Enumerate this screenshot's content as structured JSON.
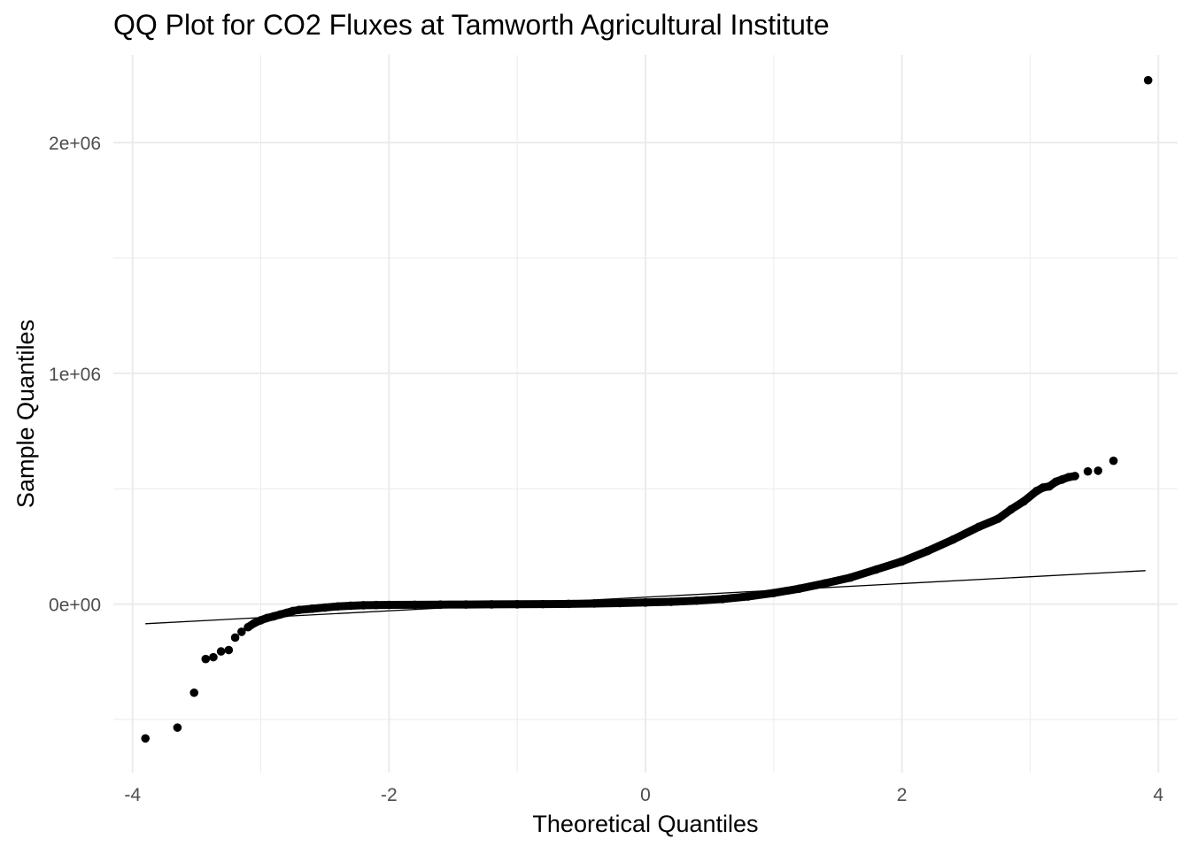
{
  "chart_data": {
    "type": "scatter",
    "title": "QQ Plot for CO2 Fluxes at Tamworth Agricultural Institute",
    "xlabel": "Theoretical Quantiles",
    "ylabel": "Sample Quantiles",
    "xlim": [
      -4.15,
      4.15
    ],
    "ylim": [
      -730000,
      2380000
    ],
    "x_ticks": [
      {
        "value": -4,
        "label": "-4"
      },
      {
        "value": -2,
        "label": "-2"
      },
      {
        "value": 0,
        "label": "0"
      },
      {
        "value": 2,
        "label": "2"
      },
      {
        "value": 4,
        "label": "4"
      }
    ],
    "y_ticks": [
      {
        "value": 0,
        "label": "0e+00"
      },
      {
        "value": 1000000,
        "label": "1e+06"
      },
      {
        "value": 2000000,
        "label": "2e+06"
      }
    ],
    "x_minor_breaks": [
      -3,
      -1,
      1,
      3
    ],
    "y_minor_breaks": [
      -500000,
      500000,
      1500000
    ],
    "grid": true,
    "point_color": "#000000",
    "line_color": "#000000",
    "grid_color": "#ebebeb",
    "reference_line": {
      "x": [
        -3.9,
        3.9
      ],
      "y": [
        -85000,
        145000
      ]
    },
    "series": [
      {
        "values": [
          [
            -3.9,
            -582000
          ],
          [
            -3.65,
            -535000
          ],
          [
            -3.52,
            -384000
          ],
          [
            -3.43,
            -238000
          ],
          [
            -3.37,
            -230000
          ],
          [
            -3.31,
            -205000
          ],
          [
            -3.25,
            -199000
          ],
          [
            -3.2,
            -145000
          ],
          [
            -3.15,
            -120000
          ],
          [
            -3.1,
            -100000
          ],
          [
            -3.05,
            -82000
          ],
          [
            -3.0,
            -70000
          ],
          [
            -2.95,
            -60000
          ],
          [
            -2.9,
            -53000
          ],
          [
            -2.85,
            -45000
          ],
          [
            -2.8,
            -38000
          ],
          [
            -2.75,
            -30000
          ],
          [
            -2.7,
            -25000
          ],
          [
            -2.6,
            -20000
          ],
          [
            -2.5,
            -15000
          ],
          [
            -2.4,
            -10000
          ],
          [
            -2.3,
            -7000
          ],
          [
            -2.2,
            -5000
          ],
          [
            -2.1,
            -4000
          ],
          [
            -2.0,
            -3500
          ],
          [
            -1.8,
            -2800
          ],
          [
            -1.6,
            -2200
          ],
          [
            -1.4,
            -1700
          ],
          [
            -1.2,
            -1200
          ],
          [
            -1.0,
            -700
          ],
          [
            -0.8,
            0
          ],
          [
            -0.6,
            1000
          ],
          [
            -0.4,
            2500
          ],
          [
            -0.2,
            4500
          ],
          [
            0.0,
            7000
          ],
          [
            0.2,
            10000
          ],
          [
            0.4,
            15000
          ],
          [
            0.6,
            22000
          ],
          [
            0.8,
            33000
          ],
          [
            1.0,
            48000
          ],
          [
            1.2,
            67000
          ],
          [
            1.4,
            90000
          ],
          [
            1.6,
            115000
          ],
          [
            1.8,
            150000
          ],
          [
            2.0,
            185000
          ],
          [
            2.2,
            230000
          ],
          [
            2.4,
            280000
          ],
          [
            2.6,
            335000
          ],
          [
            2.75,
            370000
          ],
          [
            2.85,
            410000
          ],
          [
            2.95,
            445000
          ],
          [
            3.05,
            490000
          ],
          [
            3.1,
            505000
          ],
          [
            3.15,
            510000
          ],
          [
            3.2,
            530000
          ],
          [
            3.25,
            540000
          ],
          [
            3.3,
            550000
          ],
          [
            3.35,
            555000
          ],
          [
            3.45,
            575000
          ],
          [
            3.53,
            578000
          ],
          [
            3.65,
            621000
          ],
          [
            3.92,
            2270000
          ]
        ]
      }
    ]
  }
}
